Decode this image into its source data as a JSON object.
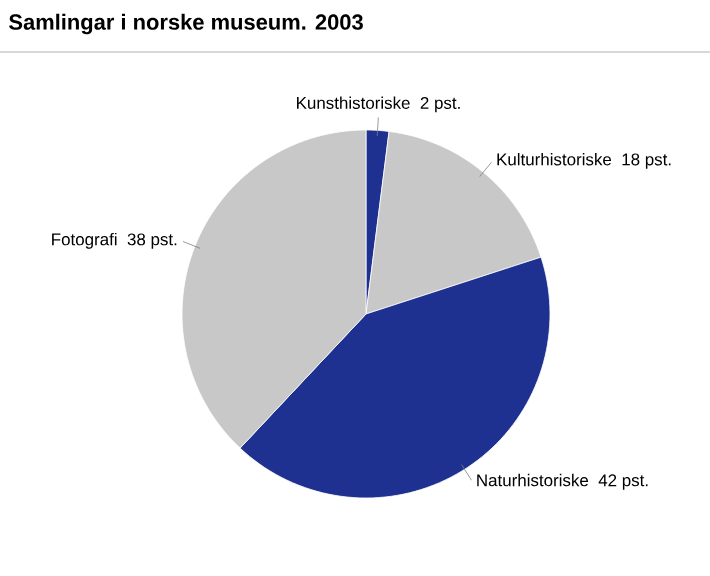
{
  "chart_data": {
    "type": "pie",
    "title": "Samlingar i norske museum. 2003",
    "categories": [
      "Kunsthistoriske",
      "Kulturhistoriske",
      "Naturhistoriske",
      "Fotografi"
    ],
    "values": [
      2,
      18,
      42,
      38
    ],
    "value_labels": [
      "2 pst.",
      "18 pst.",
      "42 pst.",
      "38 pst."
    ],
    "colors": [
      "#1e3190",
      "#c8c8c8",
      "#1e3190",
      "#c8c8c8"
    ]
  }
}
